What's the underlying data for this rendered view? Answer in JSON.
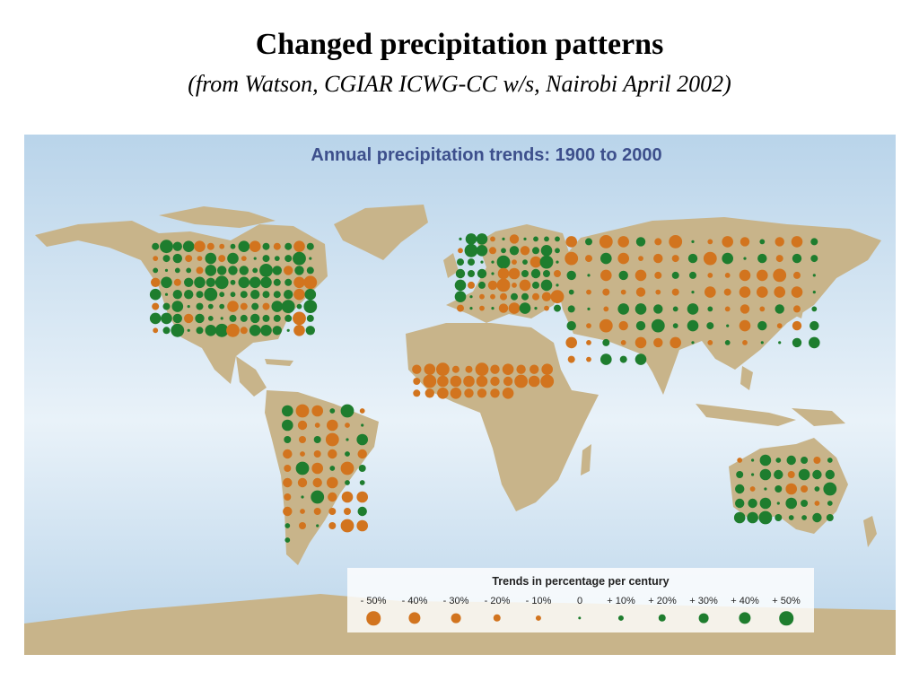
{
  "slide": {
    "title": "Changed precipitation patterns",
    "subtitle": "(from Watson, CGIAR ICWG-CC w/s, Nairobi April 2002)"
  },
  "map": {
    "title": "Annual precipitation trends: 1900 to 2000",
    "colors": {
      "ocean_top": "#b9d4ea",
      "ocean_bottom": "#e9f2f9",
      "land": "#c8b48a",
      "decrease": "#d2741e",
      "increase": "#1e7d2e"
    }
  },
  "legend": {
    "title": "Trends in percentage per century",
    "items": [
      {
        "label": "- 50%",
        "value": -50
      },
      {
        "label": "- 40%",
        "value": -40
      },
      {
        "label": "- 30%",
        "value": -30
      },
      {
        "label": "- 20%",
        "value": -20
      },
      {
        "label": "- 10%",
        "value": -10
      },
      {
        "label": "0",
        "value": 0
      },
      {
        "label": "+ 10%",
        "value": 10
      },
      {
        "label": "+ 20%",
        "value": 20
      },
      {
        "label": "+ 30%",
        "value": 30
      },
      {
        "label": "+ 40%",
        "value": 40
      },
      {
        "label": "+ 50%",
        "value": 50
      }
    ]
  },
  "trend_points": [
    {
      "region": "North America",
      "count": 120,
      "pattern": "mostly increasing"
    },
    {
      "region": "South America",
      "count": 55,
      "pattern": "mixed"
    },
    {
      "region": "Europe",
      "count": 70,
      "pattern": "increasing north, decreasing south"
    },
    {
      "region": "Sahel",
      "count": 30,
      "pattern": "strongly decreasing"
    },
    {
      "region": "Central & East Asia",
      "count": 110,
      "pattern": "mixed"
    },
    {
      "region": "Australia",
      "count": 40,
      "pattern": "increasing"
    }
  ]
}
